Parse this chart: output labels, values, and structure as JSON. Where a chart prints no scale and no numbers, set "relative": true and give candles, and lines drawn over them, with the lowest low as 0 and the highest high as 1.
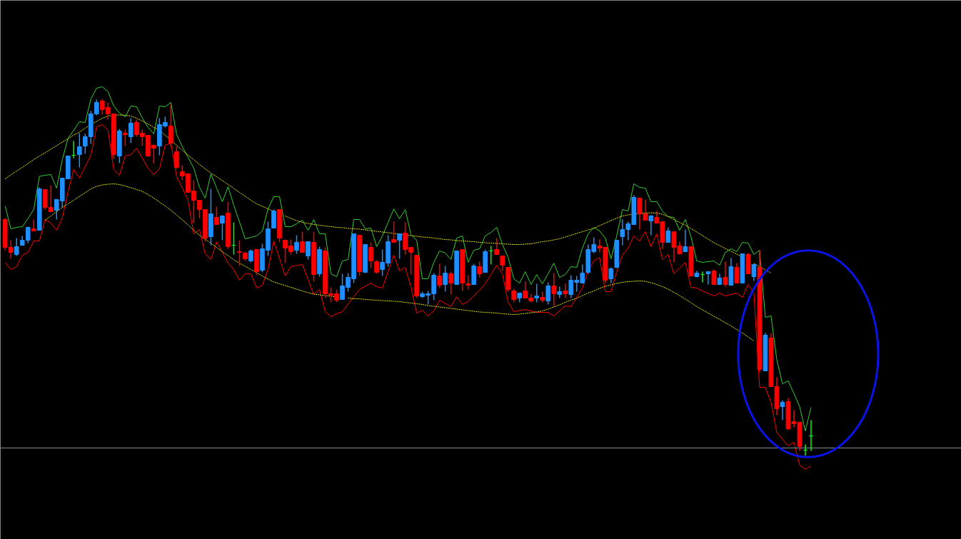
{
  "chart_data": {
    "type": "candlestick",
    "relative": true,
    "tick_labels": false,
    "grid": false,
    "categories": [
      null,
      null,
      null,
      null,
      null,
      null,
      null,
      null,
      null,
      null,
      null,
      null,
      null,
      null,
      null,
      null,
      null,
      null,
      null,
      null,
      null,
      null,
      null,
      null,
      null,
      null,
      null,
      null,
      null,
      null,
      null,
      null,
      null,
      null,
      null,
      null,
      null,
      null,
      null,
      null,
      null,
      null,
      null,
      null,
      null,
      null,
      null,
      null,
      null,
      null,
      null,
      null,
      null,
      null,
      null,
      null,
      null,
      null,
      null,
      null,
      null,
      null,
      null,
      null,
      null,
      null,
      null,
      null,
      null,
      null,
      null,
      null,
      null,
      null,
      null,
      null,
      null,
      null,
      null,
      null,
      null,
      null,
      null,
      null,
      null,
      null,
      null,
      null,
      null,
      null,
      null,
      null,
      null,
      null,
      null,
      null,
      null,
      null,
      null,
      null,
      null,
      null,
      null,
      null,
      null,
      null,
      null,
      null,
      null,
      null,
      null,
      null,
      null,
      null,
      null,
      null,
      null,
      null,
      null,
      null,
      null,
      null,
      null,
      null,
      null,
      null,
      null,
      null,
      null,
      null,
      null,
      null,
      null,
      null,
      null,
      null,
      null,
      null,
      null,
      null,
      null,
      null
    ],
    "ohlc": [
      [
        0.662,
        0.666,
        0.576,
        0.584
      ],
      [
        0.584,
        0.604,
        0.552,
        0.57
      ],
      [
        0.564,
        0.61,
        0.56,
        0.586
      ],
      [
        0.59,
        0.616,
        0.59,
        0.604
      ],
      [
        0.604,
        0.642,
        0.596,
        0.64
      ],
      [
        0.636,
        0.662,
        0.63,
        0.63
      ],
      [
        0.632,
        0.752,
        0.632,
        0.748
      ],
      [
        0.746,
        0.746,
        0.69,
        0.696
      ],
      [
        0.696,
        0.758,
        0.684,
        0.684
      ],
      [
        0.688,
        0.718,
        0.662,
        0.718
      ],
      [
        0.714,
        0.778,
        0.696,
        0.778
      ],
      [
        0.776,
        0.84,
        0.776,
        0.84
      ],
      [
        0.842,
        0.882,
        0.834,
        0.842
      ],
      [
        0.844,
        0.904,
        0.808,
        0.866
      ],
      [
        0.868,
        0.902,
        0.846,
        0.894
      ],
      [
        0.894,
        0.966,
        0.874,
        0.958
      ],
      [
        0.958,
        0.998,
        0.954,
        0.99
      ],
      [
        0.994,
        1.0,
        0.956,
        0.97
      ],
      [
        0.976,
        0.99,
        0.942,
        0.958
      ],
      [
        0.958,
        0.958,
        0.832,
        0.844
      ],
      [
        0.84,
        0.916,
        0.82,
        0.91
      ],
      [
        0.904,
        0.914,
        0.868,
        0.9
      ],
      [
        0.894,
        0.946,
        0.876,
        0.932
      ],
      [
        0.934,
        0.942,
        0.894,
        0.9
      ],
      [
        0.904,
        0.914,
        0.868,
        0.894
      ],
      [
        0.898,
        0.898,
        0.838,
        0.84
      ],
      [
        0.87,
        0.872,
        0.818,
        0.862
      ],
      [
        0.868,
        0.946,
        0.842,
        0.928
      ],
      [
        0.924,
        0.95,
        0.92,
        0.934
      ],
      [
        0.924,
        0.986,
        0.866,
        0.876
      ],
      [
        0.852,
        0.866,
        0.804,
        0.808
      ],
      [
        0.796,
        0.814,
        0.772,
        0.784
      ],
      [
        0.79,
        0.79,
        0.738,
        0.738
      ],
      [
        0.742,
        0.772,
        0.652,
        0.716
      ],
      [
        0.716,
        0.716,
        0.666,
        0.69
      ],
      [
        0.69,
        0.69,
        0.6,
        0.61
      ],
      [
        0.614,
        0.748,
        0.59,
        0.678
      ],
      [
        0.668,
        0.698,
        0.648,
        0.648
      ],
      [
        0.652,
        0.674,
        0.604,
        0.672
      ],
      [
        0.68,
        0.712,
        0.58,
        0.586
      ],
      [
        0.59,
        0.654,
        0.564,
        0.59
      ],
      [
        0.572,
        0.604,
        0.532,
        0.57
      ],
      [
        0.568,
        0.572,
        0.546,
        0.552
      ],
      [
        0.546,
        0.578,
        0.542,
        0.574
      ],
      [
        0.578,
        0.58,
        0.506,
        0.516
      ],
      [
        0.52,
        0.594,
        0.514,
        0.58
      ],
      [
        0.576,
        0.656,
        0.56,
        0.636
      ],
      [
        0.638,
        0.69,
        0.638,
        0.686
      ],
      [
        0.69,
        0.69,
        0.598,
        0.61
      ],
      [
        0.604,
        0.606,
        0.54,
        0.582
      ],
      [
        0.588,
        0.606,
        0.564,
        0.572
      ],
      [
        0.576,
        0.618,
        0.566,
        0.598
      ],
      [
        0.6,
        0.628,
        0.57,
        0.57
      ],
      [
        0.56,
        0.6,
        0.55,
        0.6
      ],
      [
        0.598,
        0.628,
        0.488,
        0.508
      ],
      [
        0.51,
        0.586,
        0.502,
        0.578
      ],
      [
        0.574,
        0.584,
        0.442,
        0.454
      ],
      [
        0.454,
        0.472,
        0.43,
        0.45
      ],
      [
        0.454,
        0.466,
        0.43,
        0.436
      ],
      [
        0.438,
        0.51,
        0.438,
        0.476
      ],
      [
        0.472,
        0.512,
        0.46,
        0.5
      ],
      [
        0.496,
        0.622,
        0.484,
        0.622
      ],
      [
        0.618,
        0.618,
        0.504,
        0.516
      ],
      [
        0.514,
        0.592,
        0.514,
        0.592
      ],
      [
        0.584,
        0.598,
        0.526,
        0.546
      ],
      [
        0.544,
        0.548,
        0.51,
        0.514
      ],
      [
        0.522,
        0.578,
        0.504,
        0.542
      ],
      [
        0.54,
        0.618,
        0.53,
        0.6
      ],
      [
        0.606,
        0.656,
        0.598,
        0.598
      ],
      [
        0.604,
        0.622,
        0.552,
        0.622
      ],
      [
        0.624,
        0.654,
        0.564,
        0.578
      ],
      [
        0.584,
        0.584,
        0.508,
        0.57
      ],
      [
        0.562,
        0.562,
        0.442,
        0.448
      ],
      [
        0.446,
        0.46,
        0.442,
        0.454
      ],
      [
        0.45,
        0.462,
        0.424,
        0.454
      ],
      [
        0.454,
        0.512,
        0.436,
        0.506
      ],
      [
        0.504,
        0.538,
        0.47,
        0.478
      ],
      [
        0.48,
        0.532,
        0.46,
        0.512
      ],
      [
        0.51,
        0.516,
        0.452,
        0.484
      ],
      [
        0.48,
        0.574,
        0.48,
        0.574
      ],
      [
        0.578,
        0.578,
        0.462,
        0.484
      ],
      [
        0.482,
        0.506,
        0.466,
        0.478
      ],
      [
        0.48,
        0.538,
        0.48,
        0.532
      ],
      [
        0.53,
        0.544,
        0.5,
        0.51
      ],
      [
        0.514,
        0.578,
        0.514,
        0.572
      ],
      [
        0.574,
        0.588,
        0.536,
        0.574
      ],
      [
        0.578,
        0.61,
        0.564,
        0.564
      ],
      [
        0.56,
        0.56,
        0.518,
        0.534
      ],
      [
        0.528,
        0.528,
        0.46,
        0.466
      ],
      [
        0.462,
        0.468,
        0.43,
        0.438
      ],
      [
        0.442,
        0.456,
        0.43,
        0.456
      ],
      [
        0.462,
        0.488,
        0.442,
        0.442
      ],
      [
        0.442,
        0.454,
        0.43,
        0.434
      ],
      [
        0.442,
        0.482,
        0.43,
        0.448
      ],
      [
        0.444,
        0.46,
        0.43,
        0.436
      ],
      [
        0.434,
        0.486,
        0.424,
        0.476
      ],
      [
        0.476,
        0.512,
        0.418,
        0.454
      ],
      [
        0.452,
        0.474,
        0.442,
        0.46
      ],
      [
        0.462,
        0.482,
        0.442,
        0.454
      ],
      [
        0.452,
        0.506,
        0.442,
        0.492
      ],
      [
        0.486,
        0.504,
        0.46,
        0.492
      ],
      [
        0.484,
        0.536,
        0.484,
        0.512
      ],
      [
        0.514,
        0.592,
        0.51,
        0.578
      ],
      [
        0.572,
        0.612,
        0.568,
        0.592
      ],
      [
        0.588,
        0.606,
        0.57,
        0.582
      ],
      [
        0.584,
        0.584,
        0.484,
        0.492
      ],
      [
        0.496,
        0.528,
        0.484,
        0.524
      ],
      [
        0.528,
        0.604,
        0.526,
        0.604
      ],
      [
        0.614,
        0.662,
        0.59,
        0.634
      ],
      [
        0.634,
        0.656,
        0.604,
        0.65
      ],
      [
        0.648,
        0.73,
        0.648,
        0.724
      ],
      [
        0.722,
        0.722,
        0.634,
        0.678
      ],
      [
        0.678,
        0.718,
        0.66,
        0.66
      ],
      [
        0.658,
        0.674,
        0.618,
        0.672
      ],
      [
        0.668,
        0.686,
        0.652,
        0.652
      ],
      [
        0.656,
        0.656,
        0.58,
        0.598
      ],
      [
        0.598,
        0.64,
        0.598,
        0.63
      ],
      [
        0.628,
        0.628,
        0.542,
        0.584
      ],
      [
        0.588,
        0.6,
        0.564,
        0.566
      ],
      [
        0.572,
        0.634,
        0.572,
        0.586
      ],
      [
        0.586,
        0.586,
        0.502,
        0.504
      ],
      [
        0.502,
        0.518,
        0.5,
        0.512
      ],
      [
        0.508,
        0.516,
        0.486,
        0.508
      ],
      [
        0.51,
        0.516,
        0.48,
        0.516
      ],
      [
        0.518,
        0.522,
        0.48,
        0.48
      ],
      [
        0.48,
        0.51,
        0.48,
        0.498
      ],
      [
        0.5,
        0.544,
        0.474,
        0.48
      ],
      [
        0.478,
        0.554,
        0.478,
        0.53
      ],
      [
        0.528,
        0.54,
        0.484,
        0.484
      ],
      [
        0.484,
        0.566,
        0.484,
        0.566
      ],
      [
        0.564,
        0.568,
        0.51,
        0.51
      ],
      [
        0.502,
        0.536,
        0.49,
        0.536
      ],
      [
        0.528,
        0.576,
        0.236,
        0.242
      ],
      [
        0.238,
        0.344,
        0.238,
        0.338
      ],
      [
        0.33,
        0.344,
        0.194,
        0.194
      ],
      [
        0.194,
        0.22,
        0.114,
        0.132
      ],
      [
        0.138,
        0.156,
        0.1,
        0.15
      ],
      [
        0.152,
        0.162,
        0.072,
        0.076
      ],
      [
        0.096,
        0.128,
        0.08,
        0.09
      ],
      [
        0.094,
        0.094,
        0.014,
        0.026
      ],
      [
        0.016,
        0.032,
        0,
        0.016
      ],
      [
        0.056,
        0.1,
        0.014,
        0.056
      ]
    ],
    "colors": [
      "#ff0000",
      "#ff0000",
      "#1e90ff",
      "#1e90ff",
      "#1e90ff",
      "#ff0000",
      "#1e90ff",
      "#ff0000",
      "#ff0000",
      "#1e90ff",
      "#1e90ff",
      "#1e90ff",
      "#00ff00",
      "#1e90ff",
      "#1e90ff",
      "#1e90ff",
      "#1e90ff",
      "#ff0000",
      "#ff0000",
      "#ff0000",
      "#1e90ff",
      "#ff0000",
      "#1e90ff",
      "#ff0000",
      "#ff0000",
      "#ff0000",
      "#ff0000",
      "#1e90ff",
      "#1e90ff",
      "#ff0000",
      "#ff0000",
      "#ff0000",
      "#ff0000",
      "#ff0000",
      "#ff0000",
      "#ff0000",
      "#1e90ff",
      "#ff0000",
      "#1e90ff",
      "#ff0000",
      "#00ff00",
      "#ff0000",
      "#ff0000",
      "#1e90ff",
      "#ff0000",
      "#1e90ff",
      "#1e90ff",
      "#1e90ff",
      "#ff0000",
      "#ff0000",
      "#ff0000",
      "#1e90ff",
      "#ff0000",
      "#1e90ff",
      "#ff0000",
      "#1e90ff",
      "#ff0000",
      "#ff0000",
      "#ff0000",
      "#1e90ff",
      "#1e90ff",
      "#1e90ff",
      "#ff0000",
      "#1e90ff",
      "#ff0000",
      "#ff0000",
      "#1e90ff",
      "#1e90ff",
      "#ff0000",
      "#1e90ff",
      "#ff0000",
      "#ff0000",
      "#ff0000",
      "#1e90ff",
      "#1e90ff",
      "#1e90ff",
      "#ff0000",
      "#1e90ff",
      "#ff0000",
      "#1e90ff",
      "#ff0000",
      "#ff0000",
      "#1e90ff",
      "#ff0000",
      "#1e90ff",
      "#00ff00",
      "#ff0000",
      "#ff0000",
      "#ff0000",
      "#ff0000",
      "#1e90ff",
      "#ff0000",
      "#ff0000",
      "#1e90ff",
      "#ff0000",
      "#1e90ff",
      "#ff0000",
      "#1e90ff",
      "#ff0000",
      "#1e90ff",
      "#1e90ff",
      "#1e90ff",
      "#1e90ff",
      "#1e90ff",
      "#ff0000",
      "#ff0000",
      "#1e90ff",
      "#1e90ff",
      "#1e90ff",
      "#1e90ff",
      "#1e90ff",
      "#ff0000",
      "#ff0000",
      "#1e90ff",
      "#ff0000",
      "#ff0000",
      "#1e90ff",
      "#ff0000",
      "#ff0000",
      "#1e90ff",
      "#ff0000",
      "#1e90ff",
      "#00ff00",
      "#1e90ff",
      "#ff0000",
      "#1e90ff",
      "#ff0000",
      "#1e90ff",
      "#ff0000",
      "#1e90ff",
      "#ff0000",
      "#1e90ff",
      "#ff0000",
      "#1e90ff",
      "#ff0000",
      "#ff0000",
      "#1e90ff",
      "#ff0000",
      "#ff0000",
      "#ff0000",
      "#00ff00",
      "#00ff00"
    ],
    "series": [
      {
        "type": "line",
        "color": "#33cc33",
        "line_style": "solid",
        "values": [
          0.7,
          0.636,
          0.64,
          0.642,
          0.665,
          0.69,
          0.783,
          0.786,
          0.788,
          0.75,
          0.83,
          0.89,
          0.912,
          0.936,
          0.934,
          1.0,
          1.03,
          1.034,
          1.02,
          0.98,
          0.96,
          0.95,
          0.98,
          0.978,
          0.946,
          0.92,
          0.902,
          0.98,
          0.978,
          0.99,
          0.9,
          0.866,
          0.836,
          0.806,
          0.752,
          0.722,
          0.79,
          0.75,
          0.712,
          0.754,
          0.702,
          0.655,
          0.608,
          0.612,
          0.616,
          0.63,
          0.692,
          0.726,
          0.726,
          0.642,
          0.642,
          0.65,
          0.66,
          0.632,
          0.662,
          0.622,
          0.622,
          0.51,
          0.502,
          0.546,
          0.55,
          0.662,
          0.662,
          0.636,
          0.638,
          0.586,
          0.616,
          0.654,
          0.692,
          0.664,
          0.69,
          0.62,
          0.604,
          0.496,
          0.496,
          0.542,
          0.574,
          0.568,
          0.55,
          0.61,
          0.616,
          0.542,
          0.576,
          0.58,
          0.616,
          0.626,
          0.64,
          0.592,
          0.556,
          0.496,
          0.484,
          0.516,
          0.48,
          0.508,
          0.482,
          0.51,
          0.54,
          0.5,
          0.508,
          0.53,
          0.528,
          0.582,
          0.622,
          0.64,
          0.63,
          0.61,
          0.552,
          0.616,
          0.69,
          0.686,
          0.762,
          0.752,
          0.75,
          0.712,
          0.712,
          0.686,
          0.67,
          0.668,
          0.632,
          0.662,
          0.614,
          0.546,
          0.542,
          0.544,
          0.546,
          0.534,
          0.57,
          0.58,
          0.572,
          0.598,
          0.596,
          0.564,
          0.576,
          0.388,
          0.392,
          0.27,
          0.202,
          0.21,
          0.175,
          0.138,
          0.07,
          0.136
        ]
      },
      {
        "type": "line",
        "color": "#ff0000",
        "line_style": "solid",
        "values": [
          0.542,
          0.522,
          0.53,
          0.562,
          0.57,
          0.602,
          0.602,
          0.662,
          0.652,
          0.632,
          0.666,
          0.74,
          0.802,
          0.778,
          0.81,
          0.842,
          0.922,
          0.928,
          0.912,
          0.802,
          0.786,
          0.84,
          0.844,
          0.862,
          0.834,
          0.806,
          0.788,
          0.804,
          0.87,
          0.876,
          0.782,
          0.75,
          0.716,
          0.622,
          0.634,
          0.566,
          0.55,
          0.6,
          0.57,
          0.54,
          0.522,
          0.492,
          0.51,
          0.51,
          0.47,
          0.478,
          0.522,
          0.602,
          0.553,
          0.504,
          0.53,
          0.533,
          0.536,
          0.494,
          0.452,
          0.466,
          0.404,
          0.39,
          0.398,
          0.404,
          0.425,
          0.446,
          0.466,
          0.475,
          0.484,
          0.474,
          0.47,
          0.516,
          0.562,
          0.518,
          0.528,
          0.474,
          0.4,
          0.408,
          0.392,
          0.406,
          0.436,
          0.427,
          0.418,
          0.446,
          0.424,
          0.432,
          0.448,
          0.464,
          0.482,
          0.508,
          0.534,
          0.51,
          0.43,
          0.404,
          0.407,
          0.41,
          0.406,
          0.402,
          0.402,
          0.402,
          0.392,
          0.406,
          0.42,
          0.418,
          0.444,
          0.47,
          0.518,
          0.546,
          0.556,
          0.46,
          0.46,
          0.516,
          0.562,
          0.582,
          0.616,
          0.602,
          0.628,
          0.586,
          0.622,
          0.55,
          0.564,
          0.51,
          0.526,
          0.542,
          0.472,
          0.47,
          0.462,
          0.455,
          0.448,
          0.456,
          0.448,
          0.452,
          0.456,
          0.444,
          0.48,
          0.456,
          0.192,
          0.192,
          0.15,
          0.066,
          0.047,
          0.028,
          0.038,
          -0.026,
          -0.038,
          -0.028
        ]
      },
      {
        "type": "line",
        "color": "#e6e600",
        "line_style": "dashed",
        "values": [
          0.776,
          0.787,
          0.798,
          0.808,
          0.819,
          0.83,
          0.84,
          0.849,
          0.859,
          0.869,
          0.879,
          0.888,
          0.899,
          0.907,
          0.918,
          0.928,
          0.937,
          0.946,
          0.952,
          0.954,
          0.955,
          0.954,
          0.952,
          0.946,
          0.938,
          0.93,
          0.92,
          0.912,
          0.898,
          0.884,
          0.87,
          0.856,
          0.842,
          0.83,
          0.816,
          0.804,
          0.792,
          0.782,
          0.771,
          0.76,
          0.749,
          0.738,
          0.727,
          0.716,
          0.706,
          0.699,
          0.692,
          0.685,
          null,
          0.672,
          0.665,
          0.659,
          0.654,
          0.651,
          0.648,
          0.646,
          0.644,
          0.642,
          0.64,
          0.639,
          0.637,
          0.636,
          0.635,
          0.633,
          0.631,
          0.629,
          0.627,
          0.625,
          0.623,
          0.621,
          0.619,
          0.617,
          0.615,
          0.613,
          0.612,
          0.61,
          0.608,
          0.606,
          0.605,
          0.603,
          0.602,
          0.601,
          0.6,
          0.598,
          0.597,
          0.596,
          0.595,
          0.594,
          0.593,
          0.592,
          0.592,
          0.593,
          0.594,
          0.597,
          0.6,
          0.602,
          0.605,
          0.608,
          0.613,
          0.618,
          0.623,
          0.628,
          0.633,
          0.637,
          0.645,
          0.652,
          0.659,
          0.666,
          0.672,
          0.675,
          0.677,
          0.679,
          0.68,
          0.681,
          0.68,
          0.677,
          0.67,
          0.662,
          0.654,
          0.646,
          0.637,
          0.627,
          0.617,
          0.607,
          0.597,
          0.589,
          0.581,
          0.573,
          0.565,
          0.557,
          null,
          0.539,
          0.53,
          0.521,
          0.512,
          null,
          null,
          null,
          null,
          null,
          null,
          null
        ]
      },
      {
        "type": "line",
        "color": "#e6e600",
        "line_style": "dashed",
        "values": [
          null,
          null,
          null,
          null,
          null,
          null,
          null,
          0.66,
          0.672,
          0.684,
          0.696,
          0.706,
          0.716,
          0.727,
          0.737,
          0.748,
          0.755,
          0.759,
          0.761,
          0.762,
          0.76,
          0.756,
          0.751,
          0.746,
          0.741,
          0.732,
          0.722,
          0.711,
          0.7,
          0.688,
          0.675,
          0.661,
          0.647,
          0.632,
          0.618,
          0.607,
          0.595,
          0.584,
          0.572,
          0.561,
          0.549,
          0.54,
          0.531,
          0.522,
          0.513,
          0.504,
          0.495,
          0.487,
          0.482,
          0.477,
          0.472,
          0.467,
          0.462,
          0.457,
          0.453,
          0.451,
          0.449,
          0.447,
          0.445,
          null,
          0.442,
          0.44,
          0.44,
          0.438,
          0.437,
          0.436,
          0.435,
          0.434,
          0.433,
          0.432,
          0.43,
          0.428,
          0.426,
          0.424,
          0.421,
          0.419,
          0.417,
          0.415,
          0.413,
          0.411,
          0.409,
          0.407,
          0.405,
          0.403,
          0.402,
          0.401,
          0.4,
          0.398,
          0.397,
          0.396,
          0.397,
          0.399,
          0.401,
          0.403,
          0.406,
          0.411,
          0.417,
          0.423,
          0.43,
          0.436,
          0.442,
          0.449,
          0.456,
          0.462,
          0.469,
          0.475,
          0.479,
          0.483,
          0.486,
          0.488,
          0.489,
          0.49,
          0.489,
          0.485,
          0.48,
          0.474,
          0.467,
          0.458,
          0.449,
          0.439,
          0.429,
          0.418,
          0.409,
          0.4,
          0.391,
          0.382,
          0.373,
          0.364,
          0.354,
          0.344,
          0.333,
          0.322,
          null,
          null,
          null,
          null,
          null,
          null,
          null,
          null,
          null,
          null
        ]
      }
    ],
    "ref_lines": [
      {
        "axis": "y",
        "value": 0.022,
        "color": "#7f8c99"
      }
    ]
  }
}
